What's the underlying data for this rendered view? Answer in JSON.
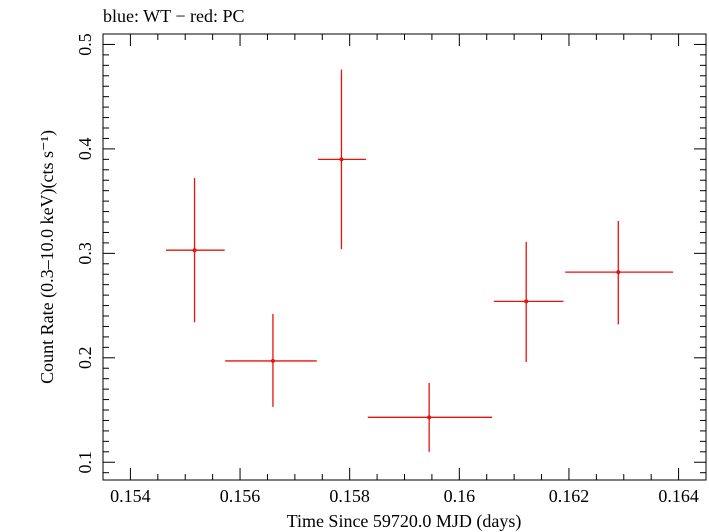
{
  "chart_data": {
    "type": "scatter",
    "title": "blue: WT − red: PC",
    "xlabel": "Time Since 59720.0 MJD (days)",
    "ylabel": "Count Rate (0.3–10.0 keV)(cts s⁻¹)",
    "xlim": [
      0.1535,
      0.1645
    ],
    "ylim": [
      0.083,
      0.51
    ],
    "xticks": [
      0.154,
      0.156,
      0.158,
      0.16,
      0.162,
      0.164
    ],
    "xtick_labels": [
      "0.154",
      "0.156",
      "0.158",
      "0.16",
      "0.162",
      "0.164"
    ],
    "yticks": [
      0.1,
      0.2,
      0.3,
      0.4,
      0.5
    ],
    "ytick_labels": [
      "0.1",
      "0.2",
      "0.3",
      "0.4",
      "0.5"
    ],
    "grid": false,
    "series": [
      {
        "color": "#e8120c",
        "points": [
          {
            "x": 0.15517,
            "y": 0.303,
            "xlo": 0.15465,
            "xhi": 0.15572,
            "ylo": 0.234,
            "yhi": 0.372
          },
          {
            "x": 0.1566,
            "y": 0.197,
            "xlo": 0.15573,
            "xhi": 0.1574,
            "ylo": 0.153,
            "yhi": 0.242
          },
          {
            "x": 0.15785,
            "y": 0.39,
            "xlo": 0.15742,
            "xhi": 0.1583,
            "ylo": 0.304,
            "yhi": 0.476
          },
          {
            "x": 0.15945,
            "y": 0.143,
            "xlo": 0.15833,
            "xhi": 0.1606,
            "ylo": 0.11,
            "yhi": 0.176
          },
          {
            "x": 0.16122,
            "y": 0.254,
            "xlo": 0.16063,
            "xhi": 0.1619,
            "ylo": 0.196,
            "yhi": 0.311
          },
          {
            "x": 0.1629,
            "y": 0.282,
            "xlo": 0.16193,
            "xhi": 0.1639,
            "ylo": 0.232,
            "yhi": 0.331
          }
        ]
      }
    ]
  }
}
